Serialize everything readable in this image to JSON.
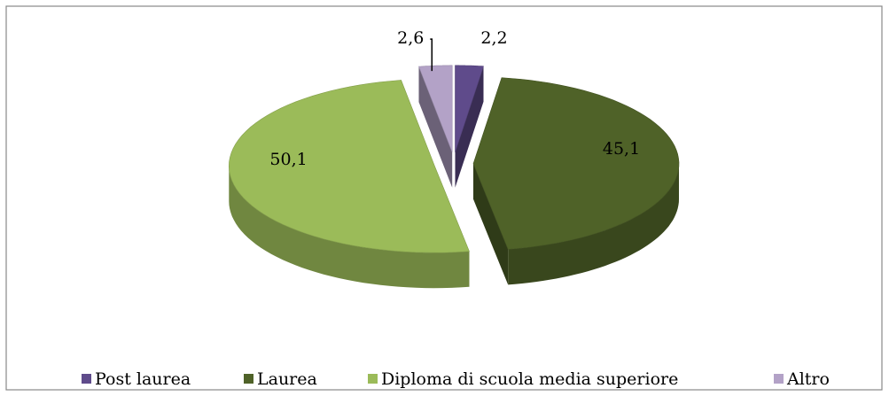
{
  "chart_data": {
    "type": "pie3d",
    "categories": [
      "Post laurea",
      "Laurea",
      "Diploma di scuola media superiore",
      "Altro"
    ],
    "values": [
      2.2,
      45.1,
      50.1,
      2.6
    ],
    "value_labels": [
      "2,2",
      "45,1",
      "50,1",
      "2,6"
    ],
    "colors": [
      "#5f4b8b",
      "#4f6228",
      "#9bbb59",
      "#b3a2c7"
    ],
    "legend": "bottom"
  }
}
